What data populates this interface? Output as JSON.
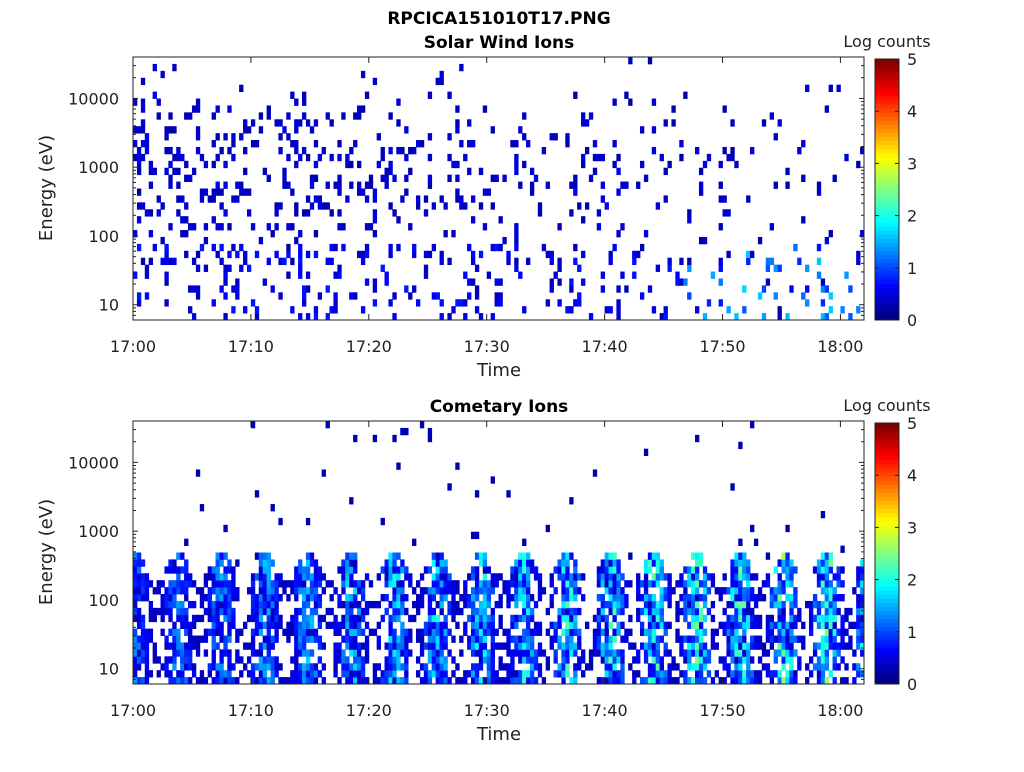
{
  "figure_title": "RPCICA151010T17.PNG",
  "chart_data": [
    {
      "type": "heatmap",
      "title": "Solar Wind Ions",
      "xlabel": "Time",
      "ylabel": "Energy (eV)",
      "x_ticks": [
        "17:00",
        "17:10",
        "17:20",
        "17:30",
        "17:40",
        "17:50",
        "18:00"
      ],
      "x_range": [
        "17:00",
        "18:02"
      ],
      "y_scale": "log",
      "y_ticks": [
        "10",
        "100",
        "1000",
        "10000"
      ],
      "y_range": [
        6,
        40000
      ],
      "colorbar": {
        "label": "Log counts",
        "ticks": [
          "0",
          "1",
          "2",
          "3",
          "4",
          "5"
        ],
        "range": [
          0,
          5
        ],
        "colormap": "jet"
      },
      "pattern": "sparse",
      "seed": 17
    },
    {
      "type": "heatmap",
      "title": "Cometary Ions",
      "xlabel": "Time",
      "ylabel": "Energy (eV)",
      "x_ticks": [
        "17:00",
        "17:10",
        "17:20",
        "17:30",
        "17:40",
        "17:50",
        "18:00"
      ],
      "x_range": [
        "17:00",
        "18:02"
      ],
      "y_scale": "log",
      "y_ticks": [
        "10",
        "100",
        "1000",
        "10000"
      ],
      "y_range": [
        6,
        40000
      ],
      "colorbar": {
        "label": "Log counts",
        "ticks": [
          "0",
          "1",
          "2",
          "3",
          "4",
          "5"
        ],
        "range": [
          0,
          5
        ],
        "colormap": "jet"
      },
      "pattern": "banded",
      "seed": 41
    }
  ]
}
